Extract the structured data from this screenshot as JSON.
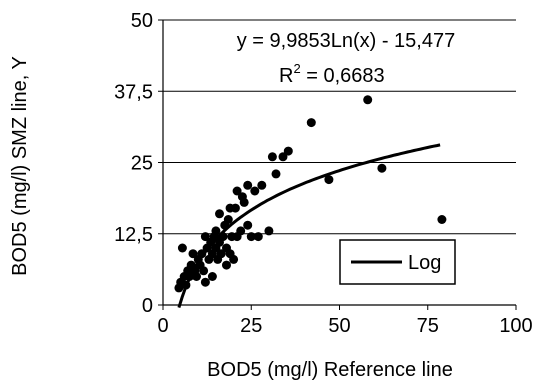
{
  "chart_data": {
    "type": "scatter",
    "title": "",
    "xlabel": "BOD5 (mg/l) Reference line",
    "ylabel": "BOD5 (mg/l) SMZ line, Y",
    "xlim": [
      0,
      100
    ],
    "ylim": [
      0,
      50
    ],
    "x_ticks": [
      "0",
      "25",
      "50",
      "75",
      "100"
    ],
    "y_ticks": [
      "0",
      "12,5",
      "25",
      "37,5",
      "50"
    ],
    "grid": "horizontal",
    "equation": "y = 9,9853Ln(x) - 15,477",
    "r_squared": {
      "prefix": "R",
      "superscript": "2",
      "value": " = 0,6683"
    },
    "legend": {
      "placement": "bottom-right",
      "entries": [
        "Log"
      ]
    },
    "colors": {
      "points": "#000000",
      "trend": "#000000",
      "grid": "#000000"
    },
    "trendline": {
      "name": "Log",
      "type": "logarithmic",
      "a": 9.9853,
      "b": -15.477,
      "x_range": [
        4.5,
        78.5
      ]
    },
    "points": [
      {
        "x": 4.5,
        "y": 3.0
      },
      {
        "x": 5.0,
        "y": 4.0
      },
      {
        "x": 5.5,
        "y": 10.0
      },
      {
        "x": 6.0,
        "y": 5.0
      },
      {
        "x": 6.5,
        "y": 3.5
      },
      {
        "x": 7.0,
        "y": 6.0
      },
      {
        "x": 7.5,
        "y": 5.0
      },
      {
        "x": 8.0,
        "y": 7.0
      },
      {
        "x": 8.5,
        "y": 9.0
      },
      {
        "x": 9.0,
        "y": 6.0
      },
      {
        "x": 9.5,
        "y": 5.0
      },
      {
        "x": 10.0,
        "y": 8.0
      },
      {
        "x": 10.5,
        "y": 7.0
      },
      {
        "x": 11.0,
        "y": 9.0
      },
      {
        "x": 11.5,
        "y": 6.0
      },
      {
        "x": 12.0,
        "y": 12.0
      },
      {
        "x": 12.0,
        "y": 4.0
      },
      {
        "x": 12.5,
        "y": 10.0
      },
      {
        "x": 13.0,
        "y": 8.0
      },
      {
        "x": 13.5,
        "y": 11.0
      },
      {
        "x": 14.0,
        "y": 9.0
      },
      {
        "x": 14.0,
        "y": 5.0
      },
      {
        "x": 14.5,
        "y": 12.0
      },
      {
        "x": 15.0,
        "y": 10.0
      },
      {
        "x": 15.0,
        "y": 13.0
      },
      {
        "x": 15.5,
        "y": 8.0
      },
      {
        "x": 16.0,
        "y": 16.0
      },
      {
        "x": 16.0,
        "y": 11.0
      },
      {
        "x": 16.5,
        "y": 9.0
      },
      {
        "x": 17.0,
        "y": 12.0
      },
      {
        "x": 17.5,
        "y": 14.0
      },
      {
        "x": 18.0,
        "y": 10.0
      },
      {
        "x": 18.0,
        "y": 7.0
      },
      {
        "x": 18.5,
        "y": 15.0
      },
      {
        "x": 19.0,
        "y": 17.0
      },
      {
        "x": 19.0,
        "y": 9.0
      },
      {
        "x": 19.5,
        "y": 12.0
      },
      {
        "x": 20.0,
        "y": 8.0
      },
      {
        "x": 20.5,
        "y": 17.0
      },
      {
        "x": 21.0,
        "y": 20.0
      },
      {
        "x": 21.0,
        "y": 12.0
      },
      {
        "x": 22.0,
        "y": 13.0
      },
      {
        "x": 22.5,
        "y": 19.0
      },
      {
        "x": 23.0,
        "y": 18.0
      },
      {
        "x": 24.0,
        "y": 21.0
      },
      {
        "x": 24.0,
        "y": 14.0
      },
      {
        "x": 25.0,
        "y": 12.0
      },
      {
        "x": 26.0,
        "y": 20.0
      },
      {
        "x": 27.0,
        "y": 12.0
      },
      {
        "x": 28.0,
        "y": 21.0
      },
      {
        "x": 30.0,
        "y": 13.0
      },
      {
        "x": 31.0,
        "y": 26.0
      },
      {
        "x": 32.0,
        "y": 23.0
      },
      {
        "x": 34.0,
        "y": 26.0
      },
      {
        "x": 35.5,
        "y": 27.0
      },
      {
        "x": 42.0,
        "y": 32.0
      },
      {
        "x": 47.0,
        "y": 22.0
      },
      {
        "x": 58.0,
        "y": 36.0
      },
      {
        "x": 62.0,
        "y": 24.0
      },
      {
        "x": 79.0,
        "y": 15.0
      }
    ]
  }
}
